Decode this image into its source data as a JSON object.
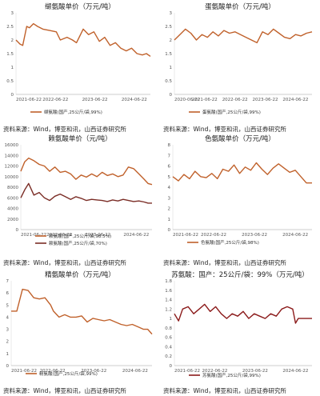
{
  "charts": [
    {
      "title": "缬氨酸单价（万元/吨）",
      "source": "资料来源：Wind，博亚和讯，山西证券研究所",
      "chart_data": {
        "type": "line",
        "x_ticks": [
          "2021-06-22",
          "2022-06-22",
          "2023-06-22",
          "2024-06-22"
        ],
        "ylim": [
          0,
          3
        ],
        "y_ticks": [
          "0",
          "0.5",
          "1",
          "1.5",
          "2",
          "2.5",
          "3"
        ],
        "series": [
          {
            "name": "缬氨酸(国产,25公斤/袋,99%)",
            "color": "#c0612b",
            "points": [
              [
                0,
                2.0
              ],
              [
                0.03,
                1.85
              ],
              [
                0.05,
                1.8
              ],
              [
                0.08,
                2.5
              ],
              [
                0.1,
                2.45
              ],
              [
                0.13,
                2.6
              ],
              [
                0.16,
                2.5
              ],
              [
                0.2,
                2.4
              ],
              [
                0.25,
                2.35
              ],
              [
                0.3,
                2.3
              ],
              [
                0.33,
                2.0
              ],
              [
                0.38,
                2.1
              ],
              [
                0.42,
                2.0
              ],
              [
                0.45,
                1.9
              ],
              [
                0.5,
                2.4
              ],
              [
                0.54,
                2.2
              ],
              [
                0.58,
                2.3
              ],
              [
                0.62,
                1.95
              ],
              [
                0.66,
                2.1
              ],
              [
                0.7,
                1.8
              ],
              [
                0.74,
                1.9
              ],
              [
                0.78,
                1.7
              ],
              [
                0.82,
                1.6
              ],
              [
                0.86,
                1.7
              ],
              [
                0.9,
                1.5
              ],
              [
                0.94,
                1.45
              ],
              [
                0.97,
                1.5
              ],
              [
                1.0,
                1.4
              ]
            ]
          }
        ]
      }
    },
    {
      "title": "蛋氨酸单价（万元/吨）",
      "source": "资料来源：Wind，博亚和讯，山西证券研究所",
      "chart_data": {
        "type": "line",
        "x_ticks": [
          "2020-06-22",
          "2021-06-22",
          "2022-06-22",
          "2023-06-22",
          "2024-06-22"
        ],
        "ylim": [
          0,
          3
        ],
        "y_ticks": [
          "0",
          "0.5",
          "1",
          "1.5",
          "2",
          "2.5",
          "3"
        ],
        "series": [
          {
            "name": "蛋氨酸(国产,25公斤/袋,99%)",
            "color": "#c0612b",
            "points": [
              [
                0,
                2.0
              ],
              [
                0.04,
                2.2
              ],
              [
                0.08,
                2.4
              ],
              [
                0.12,
                2.25
              ],
              [
                0.16,
                2.0
              ],
              [
                0.2,
                2.2
              ],
              [
                0.24,
                2.1
              ],
              [
                0.28,
                2.3
              ],
              [
                0.32,
                2.15
              ],
              [
                0.36,
                2.35
              ],
              [
                0.4,
                2.25
              ],
              [
                0.44,
                2.3
              ],
              [
                0.48,
                2.2
              ],
              [
                0.52,
                2.1
              ],
              [
                0.56,
                2.0
              ],
              [
                0.6,
                1.9
              ],
              [
                0.64,
                2.3
              ],
              [
                0.68,
                2.2
              ],
              [
                0.72,
                2.4
              ],
              [
                0.76,
                2.25
              ],
              [
                0.8,
                2.1
              ],
              [
                0.84,
                2.05
              ],
              [
                0.88,
                2.2
              ],
              [
                0.92,
                2.15
              ],
              [
                0.96,
                2.25
              ],
              [
                1.0,
                2.3
              ]
            ]
          }
        ]
      }
    },
    {
      "title": "赖氨酸单价（元/吨）",
      "source": "资料来源：Wind，博亚和讯，山西证券研究所",
      "chart_data": {
        "type": "line",
        "x_ticks": [
          "2021-06-22",
          "2022-06-22",
          "2023-06-22",
          "2024-06-22"
        ],
        "ylim": [
          0,
          16000
        ],
        "y_ticks": [
          "0",
          "2000",
          "4000",
          "6000",
          "8000",
          "10000",
          "12000",
          "14000",
          "16000"
        ],
        "series": [
          {
            "name": "赖氨酸(国产,25公斤/袋,98.5%)",
            "color": "#c0612b",
            "points": [
              [
                0,
                11000
              ],
              [
                0.03,
                12800
              ],
              [
                0.06,
                13500
              ],
              [
                0.1,
                13000
              ],
              [
                0.14,
                12300
              ],
              [
                0.18,
                12000
              ],
              [
                0.22,
                11000
              ],
              [
                0.26,
                11800
              ],
              [
                0.3,
                10800
              ],
              [
                0.34,
                11000
              ],
              [
                0.38,
                10500
              ],
              [
                0.42,
                9500
              ],
              [
                0.46,
                10300
              ],
              [
                0.5,
                9900
              ],
              [
                0.54,
                10500
              ],
              [
                0.58,
                10000
              ],
              [
                0.62,
                10800
              ],
              [
                0.66,
                10200
              ],
              [
                0.7,
                10500
              ],
              [
                0.74,
                10000
              ],
              [
                0.78,
                10300
              ],
              [
                0.82,
                11800
              ],
              [
                0.86,
                11500
              ],
              [
                0.9,
                10500
              ],
              [
                0.94,
                9500
              ],
              [
                0.97,
                8700
              ],
              [
                1.0,
                8500
              ]
            ]
          },
          {
            "name": "赖氨酸(国产,25公斤/袋,70%)",
            "color": "#7b2d26",
            "points": [
              [
                0,
                6000
              ],
              [
                0.03,
                7500
              ],
              [
                0.06,
                8700
              ],
              [
                0.1,
                6500
              ],
              [
                0.14,
                7000
              ],
              [
                0.18,
                6000
              ],
              [
                0.22,
                5500
              ],
              [
                0.26,
                6300
              ],
              [
                0.3,
                6700
              ],
              [
                0.34,
                6200
              ],
              [
                0.38,
                5700
              ],
              [
                0.42,
                6200
              ],
              [
                0.46,
                5900
              ],
              [
                0.5,
                5500
              ],
              [
                0.54,
                5700
              ],
              [
                0.58,
                5600
              ],
              [
                0.62,
                5500
              ],
              [
                0.66,
                5300
              ],
              [
                0.7,
                5600
              ],
              [
                0.74,
                5400
              ],
              [
                0.78,
                5700
              ],
              [
                0.82,
                5500
              ],
              [
                0.86,
                5300
              ],
              [
                0.9,
                5400
              ],
              [
                0.94,
                5200
              ],
              [
                0.97,
                5000
              ],
              [
                1.0,
                5000
              ]
            ]
          }
        ]
      }
    },
    {
      "title": "色氨酸单价（万元/吨）",
      "source": "资料来源：Wind，博亚和讯，山西证券研究所",
      "chart_data": {
        "type": "line",
        "x_ticks": [
          "2021-06-22",
          "2022-06-22",
          "2023-06-22",
          "2024-06-22"
        ],
        "ylim": [
          0,
          8
        ],
        "y_ticks": [
          "0",
          "1",
          "2",
          "3",
          "4",
          "5",
          "6",
          "7",
          "8"
        ],
        "series": [
          {
            "name": "色氨酸(国产,25公斤/袋,98%)",
            "color": "#c0612b",
            "points": [
              [
                0,
                5.0
              ],
              [
                0.04,
                4.6
              ],
              [
                0.08,
                5.2
              ],
              [
                0.12,
                4.8
              ],
              [
                0.16,
                5.5
              ],
              [
                0.2,
                5.0
              ],
              [
                0.24,
                4.9
              ],
              [
                0.28,
                5.3
              ],
              [
                0.32,
                4.8
              ],
              [
                0.36,
                5.7
              ],
              [
                0.4,
                5.5
              ],
              [
                0.44,
                6.1
              ],
              [
                0.48,
                5.3
              ],
              [
                0.52,
                5.9
              ],
              [
                0.56,
                5.6
              ],
              [
                0.6,
                6.3
              ],
              [
                0.64,
                5.7
              ],
              [
                0.68,
                5.2
              ],
              [
                0.72,
                5.8
              ],
              [
                0.76,
                6.2
              ],
              [
                0.8,
                5.8
              ],
              [
                0.84,
                5.4
              ],
              [
                0.88,
                5.6
              ],
              [
                0.92,
                5.0
              ],
              [
                0.96,
                4.4
              ],
              [
                1.0,
                4.4
              ]
            ]
          }
        ]
      }
    },
    {
      "title": "精氨酸单价（万元/吨）",
      "source": "资料来源：Wind，博亚和讯，山西证券研究所",
      "chart_data": {
        "type": "line",
        "x_ticks": [
          "2021-06-22",
          "2022-06-22",
          "2023-06-22",
          "2024-06-22"
        ],
        "ylim": [
          0,
          7
        ],
        "y_ticks": [
          "0",
          "1",
          "2",
          "3",
          "4",
          "5",
          "6",
          "7"
        ],
        "series": [
          {
            "name": "精氨酸(国产,25公斤/袋,99%)",
            "color": "#c0612b",
            "points": [
              [
                0,
                4.5
              ],
              [
                0.04,
                4.5
              ],
              [
                0.08,
                6.3
              ],
              [
                0.12,
                6.2
              ],
              [
                0.16,
                5.6
              ],
              [
                0.2,
                5.5
              ],
              [
                0.24,
                5.6
              ],
              [
                0.28,
                5.0
              ],
              [
                0.3,
                4.5
              ],
              [
                0.34,
                4.0
              ],
              [
                0.38,
                4.2
              ],
              [
                0.42,
                4.0
              ],
              [
                0.46,
                4.0
              ],
              [
                0.5,
                4.1
              ],
              [
                0.54,
                3.6
              ],
              [
                0.58,
                3.9
              ],
              [
                0.62,
                3.8
              ],
              [
                0.66,
                3.7
              ],
              [
                0.7,
                3.8
              ],
              [
                0.74,
                3.6
              ],
              [
                0.78,
                3.4
              ],
              [
                0.82,
                3.3
              ],
              [
                0.86,
                3.4
              ],
              [
                0.9,
                3.2
              ],
              [
                0.94,
                3.0
              ],
              [
                0.97,
                3.0
              ],
              [
                1.0,
                2.6
              ]
            ]
          }
        ]
      }
    },
    {
      "title": "苏氨酸：国产：25公斤/袋：99%（万元/吨）",
      "source": "资料来源：Wind，博亚和讯，山西证券研究所",
      "chart_data": {
        "type": "line",
        "x_ticks": [
          "2021-06-22",
          "2022-06-22",
          "2023-06-22",
          "2024-06-22"
        ],
        "ylim": [
          0,
          1.8
        ],
        "y_ticks": [
          "0",
          "0.2",
          "0.4",
          "0.6",
          "0.8",
          "1",
          "1.2",
          "1.4",
          "1.6",
          "1.8"
        ],
        "series": [
          {
            "name": "苏氨酸(国产,25公斤/袋,99%)",
            "color": "#8b1a1a",
            "points": [
              [
                0,
                1.1
              ],
              [
                0.03,
                0.95
              ],
              [
                0.06,
                1.2
              ],
              [
                0.1,
                1.25
              ],
              [
                0.14,
                1.1
              ],
              [
                0.18,
                1.2
              ],
              [
                0.22,
                1.3
              ],
              [
                0.26,
                1.15
              ],
              [
                0.3,
                1.25
              ],
              [
                0.34,
                1.1
              ],
              [
                0.38,
                1.0
              ],
              [
                0.42,
                1.1
              ],
              [
                0.46,
                1.05
              ],
              [
                0.5,
                1.15
              ],
              [
                0.54,
                1.0
              ],
              [
                0.58,
                1.1
              ],
              [
                0.62,
                1.05
              ],
              [
                0.66,
                1.0
              ],
              [
                0.7,
                1.1
              ],
              [
                0.74,
                1.05
              ],
              [
                0.78,
                1.2
              ],
              [
                0.82,
                1.25
              ],
              [
                0.86,
                1.2
              ],
              [
                0.88,
                0.9
              ],
              [
                0.9,
                1.0
              ],
              [
                0.94,
                1.0
              ],
              [
                1.0,
                1.0
              ]
            ]
          }
        ]
      }
    }
  ]
}
